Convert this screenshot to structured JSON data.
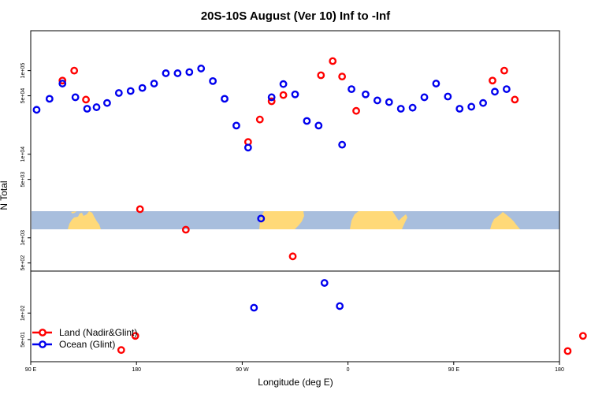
{
  "chart_data": {
    "type": "scatter",
    "title": "20S-10S August (Ver 10)   Inf to -Inf",
    "xlabel": "Longitude (deg E)",
    "ylabel": "N Total",
    "y_scale": "log",
    "x_tick_labels": [
      "90 E",
      "180",
      "90 W",
      "0",
      "90 E",
      "180"
    ],
    "y_tick_labels": [
      "5e+01",
      "1e+02",
      "5e+02",
      "1e+03",
      "5e+03",
      "1e+04",
      "5e+04",
      "1e+05"
    ],
    "colors": {
      "land": "#ff0000",
      "ocean": "#0000ee",
      "map_water": "#a8bedd",
      "map_land": "#ffd978"
    },
    "series": [
      {
        "name": "Land (Nadir&Glint)",
        "color": "#ff0000",
        "points": [
          {
            "lon": 117,
            "n": 76000
          },
          {
            "lon": 127,
            "n": 100000
          },
          {
            "lon": 137,
            "n": 45000
          },
          {
            "lon": 183,
            "n": 2200
          },
          {
            "lon": 222,
            "n": 1250
          },
          {
            "lon": 275,
            "n": 14000
          },
          {
            "lon": 285,
            "n": 26000
          },
          {
            "lon": 295,
            "n": 43000
          },
          {
            "lon": 305,
            "n": 51000
          },
          {
            "lon": 313,
            "n": 600
          },
          {
            "lon": 337,
            "n": 88000
          },
          {
            "lon": 347,
            "n": 130000
          },
          {
            "lon": 355,
            "n": 85000
          },
          {
            "lon": 367,
            "n": 33000
          },
          {
            "lon": 483,
            "n": 76000
          },
          {
            "lon": 493,
            "n": 100000
          },
          {
            "lon": 502,
            "n": 45000
          },
          {
            "lon": 179,
            "n": 55
          },
          {
            "lon": 167,
            "n": 38
          },
          {
            "lon": 547,
            "n": 37
          },
          {
            "lon": 560,
            "n": 55
          }
        ]
      },
      {
        "name": "Ocean (Glint)",
        "color": "#0000ee",
        "points": [
          {
            "lon": 95,
            "n": 34000
          },
          {
            "lon": 106,
            "n": 46000
          },
          {
            "lon": 117,
            "n": 70000
          },
          {
            "lon": 128,
            "n": 48000
          },
          {
            "lon": 138,
            "n": 35000
          },
          {
            "lon": 146,
            "n": 36500
          },
          {
            "lon": 155,
            "n": 41000
          },
          {
            "lon": 165,
            "n": 54000
          },
          {
            "lon": 175,
            "n": 57000
          },
          {
            "lon": 185,
            "n": 62000
          },
          {
            "lon": 195,
            "n": 70000
          },
          {
            "lon": 205,
            "n": 93000
          },
          {
            "lon": 215,
            "n": 93000
          },
          {
            "lon": 225,
            "n": 96000
          },
          {
            "lon": 235,
            "n": 106000
          },
          {
            "lon": 245,
            "n": 75000
          },
          {
            "lon": 255,
            "n": 46000
          },
          {
            "lon": 265,
            "n": 22000
          },
          {
            "lon": 275,
            "n": 12000
          },
          {
            "lon": 286,
            "n": 1700
          },
          {
            "lon": 295,
            "n": 48000
          },
          {
            "lon": 305,
            "n": 69000
          },
          {
            "lon": 315,
            "n": 52000
          },
          {
            "lon": 325,
            "n": 25000
          },
          {
            "lon": 335,
            "n": 22000
          },
          {
            "lon": 340,
            "n": 220
          },
          {
            "lon": 355,
            "n": 13000
          },
          {
            "lon": 363,
            "n": 60000
          },
          {
            "lon": 375,
            "n": 52000
          },
          {
            "lon": 385,
            "n": 44000
          },
          {
            "lon": 395,
            "n": 42000
          },
          {
            "lon": 405,
            "n": 35000
          },
          {
            "lon": 415,
            "n": 36000
          },
          {
            "lon": 425,
            "n": 48000
          },
          {
            "lon": 435,
            "n": 70000
          },
          {
            "lon": 445,
            "n": 49000
          },
          {
            "lon": 455,
            "n": 35000
          },
          {
            "lon": 465,
            "n": 37000
          },
          {
            "lon": 475,
            "n": 41000
          },
          {
            "lon": 485,
            "n": 56000
          },
          {
            "lon": 495,
            "n": 60000
          },
          {
            "lon": 280,
            "n": 115
          },
          {
            "lon": 353,
            "n": 120
          }
        ]
      }
    ],
    "legend_position": "bottom-left"
  }
}
